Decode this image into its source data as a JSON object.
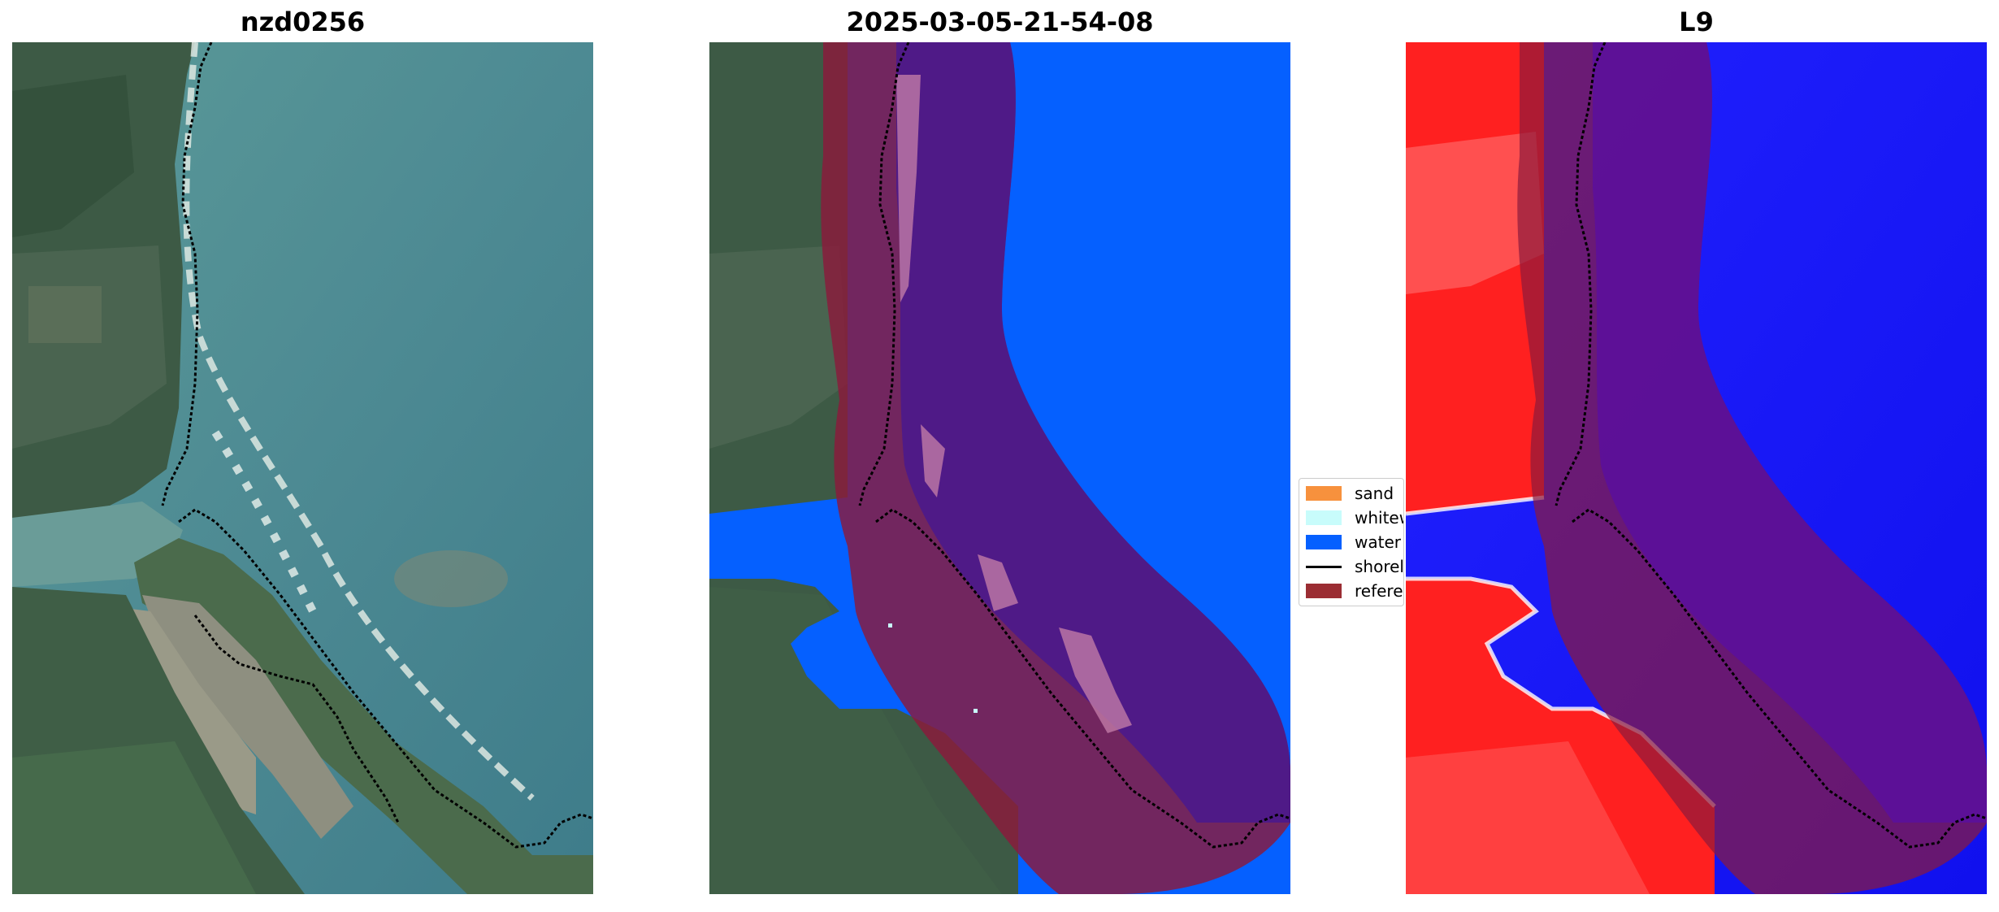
{
  "panels": {
    "left_title": "nzd0256",
    "middle_title": "2025-03-05-21-54-08",
    "right_title": "L9"
  },
  "legend": {
    "items": [
      {
        "label": "sand",
        "color": "#f7913d"
      },
      {
        "label": "whitew",
        "color": "#c8fcfb"
      },
      {
        "label": "water",
        "color": "#0560ff"
      },
      {
        "label": "shorel",
        "color": "#000000"
      },
      {
        "label": "referen",
        "color": "#9b2d33"
      }
    ]
  },
  "colors": {
    "ocean": "#4d8a93",
    "land": "#3b5a42",
    "water_class": "#0560ff",
    "reference_overlay": "#8b1a3c",
    "index_positive": "#ff1a1a",
    "index_negative": "#1a1aff"
  }
}
